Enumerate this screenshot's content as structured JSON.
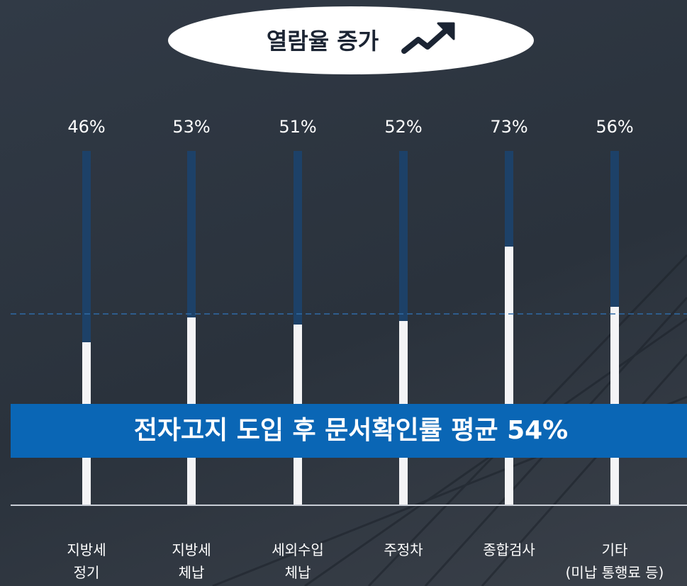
{
  "chart_data": {
    "type": "bar",
    "title": "열람율 증가",
    "categories": [
      "지방세\n정기",
      "지방세\n체납",
      "세외수입\n체납",
      "주정차",
      "종합검사",
      "기타\n(미납 통행료 등)"
    ],
    "values": [
      46,
      53,
      51,
      52,
      73,
      56
    ],
    "value_labels": [
      "46%",
      "53%",
      "51%",
      "52%",
      "73%",
      "56%"
    ],
    "average": 54,
    "annotation": "전자고지 도입 후 문서확인률 평균 54%",
    "ylim": [
      0,
      100
    ],
    "color": "#f4f4f6",
    "track_color": "#1d4168",
    "banner_color": "#0a66b5"
  }
}
